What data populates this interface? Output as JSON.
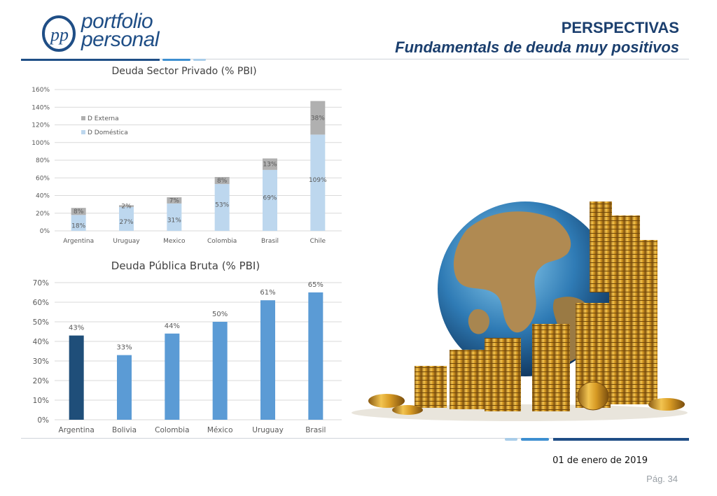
{
  "header": {
    "logo_monogram": "pp",
    "logo_line1": "portfolio",
    "logo_line2": "personal",
    "title": "PERSPECTIVAS",
    "subtitle": "Fundamentals de deuda muy positivos"
  },
  "footer": {
    "date": "01 de enero de 2019",
    "page": "Pág. 34"
  },
  "colors": {
    "brand_dark": "#1f4e86",
    "brand_mid": "#3d8fd1",
    "brand_light": "#a9cde9",
    "domestic": "#bdd7ee",
    "external": "#b0b0b0",
    "bar_blue": "#5b9bd5",
    "bar_highlight": "#1f4e79"
  },
  "illustration": {
    "icon": "globe-with-gold-coins"
  },
  "chart_data": [
    {
      "type": "bar",
      "stacked": true,
      "title": "Deuda  Sector Privado (% PBI)",
      "categories": [
        "Argentina",
        "Uruguay",
        "Mexico",
        "Colombia",
        "Brasil",
        "Chile"
      ],
      "series": [
        {
          "name": "D Doméstica",
          "values": [
            18,
            27,
            31,
            53,
            69,
            109
          ],
          "labels": [
            "18%",
            "27%",
            "31%",
            "53%",
            "69%",
            "109%"
          ]
        },
        {
          "name": "D Externa",
          "values": [
            8,
            2,
            7,
            8,
            13,
            38
          ],
          "labels": [
            "8%",
            "2%",
            "7%",
            "8%",
            "13%",
            "38%"
          ]
        }
      ],
      "yticks": [
        "0%",
        "20%",
        "40%",
        "60%",
        "80%",
        "100%",
        "120%",
        "140%",
        "160%"
      ],
      "ylim": [
        0,
        160
      ],
      "legend_position": "top-left",
      "grid": true
    },
    {
      "type": "bar",
      "title": "Deuda Pública Bruta (% PBI)",
      "categories": [
        "Argentina",
        "Bolivia",
        "Colombia",
        "México",
        "Uruguay",
        "Brasil"
      ],
      "values": [
        43,
        33,
        44,
        50,
        61,
        65
      ],
      "labels": [
        "43%",
        "33%",
        "44%",
        "50%",
        "61%",
        "65%"
      ],
      "highlight": "Argentina",
      "yticks": [
        "0%",
        "10%",
        "20%",
        "30%",
        "40%",
        "50%",
        "60%",
        "70%"
      ],
      "ylim": [
        0,
        70
      ],
      "grid": true
    }
  ]
}
